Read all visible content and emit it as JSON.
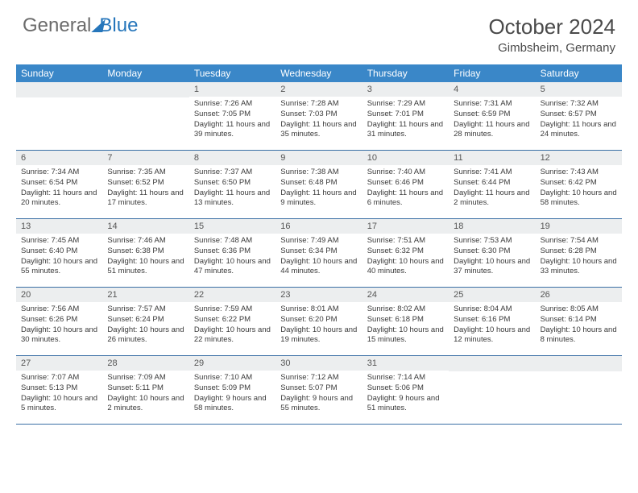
{
  "brand": {
    "text1": "General",
    "text2": "Blue"
  },
  "title": "October 2024",
  "location": "Gimbsheim, Germany",
  "colors": {
    "header_bg": "#3a87c8",
    "header_text": "#ffffff",
    "daynum_bg": "#eceeef",
    "border": "#3a6fa5",
    "brand_blue": "#2676bb",
    "text": "#333333"
  },
  "day_labels": [
    "Sunday",
    "Monday",
    "Tuesday",
    "Wednesday",
    "Thursday",
    "Friday",
    "Saturday"
  ],
  "weeks": [
    [
      null,
      null,
      {
        "n": "1",
        "sr": "7:26 AM",
        "ss": "7:05 PM",
        "dl": "Daylight: 11 hours and 39 minutes."
      },
      {
        "n": "2",
        "sr": "7:28 AM",
        "ss": "7:03 PM",
        "dl": "Daylight: 11 hours and 35 minutes."
      },
      {
        "n": "3",
        "sr": "7:29 AM",
        "ss": "7:01 PM",
        "dl": "Daylight: 11 hours and 31 minutes."
      },
      {
        "n": "4",
        "sr": "7:31 AM",
        "ss": "6:59 PM",
        "dl": "Daylight: 11 hours and 28 minutes."
      },
      {
        "n": "5",
        "sr": "7:32 AM",
        "ss": "6:57 PM",
        "dl": "Daylight: 11 hours and 24 minutes."
      }
    ],
    [
      {
        "n": "6",
        "sr": "7:34 AM",
        "ss": "6:54 PM",
        "dl": "Daylight: 11 hours and 20 minutes."
      },
      {
        "n": "7",
        "sr": "7:35 AM",
        "ss": "6:52 PM",
        "dl": "Daylight: 11 hours and 17 minutes."
      },
      {
        "n": "8",
        "sr": "7:37 AM",
        "ss": "6:50 PM",
        "dl": "Daylight: 11 hours and 13 minutes."
      },
      {
        "n": "9",
        "sr": "7:38 AM",
        "ss": "6:48 PM",
        "dl": "Daylight: 11 hours and 9 minutes."
      },
      {
        "n": "10",
        "sr": "7:40 AM",
        "ss": "6:46 PM",
        "dl": "Daylight: 11 hours and 6 minutes."
      },
      {
        "n": "11",
        "sr": "7:41 AM",
        "ss": "6:44 PM",
        "dl": "Daylight: 11 hours and 2 minutes."
      },
      {
        "n": "12",
        "sr": "7:43 AM",
        "ss": "6:42 PM",
        "dl": "Daylight: 10 hours and 58 minutes."
      }
    ],
    [
      {
        "n": "13",
        "sr": "7:45 AM",
        "ss": "6:40 PM",
        "dl": "Daylight: 10 hours and 55 minutes."
      },
      {
        "n": "14",
        "sr": "7:46 AM",
        "ss": "6:38 PM",
        "dl": "Daylight: 10 hours and 51 minutes."
      },
      {
        "n": "15",
        "sr": "7:48 AM",
        "ss": "6:36 PM",
        "dl": "Daylight: 10 hours and 47 minutes."
      },
      {
        "n": "16",
        "sr": "7:49 AM",
        "ss": "6:34 PM",
        "dl": "Daylight: 10 hours and 44 minutes."
      },
      {
        "n": "17",
        "sr": "7:51 AM",
        "ss": "6:32 PM",
        "dl": "Daylight: 10 hours and 40 minutes."
      },
      {
        "n": "18",
        "sr": "7:53 AM",
        "ss": "6:30 PM",
        "dl": "Daylight: 10 hours and 37 minutes."
      },
      {
        "n": "19",
        "sr": "7:54 AM",
        "ss": "6:28 PM",
        "dl": "Daylight: 10 hours and 33 minutes."
      }
    ],
    [
      {
        "n": "20",
        "sr": "7:56 AM",
        "ss": "6:26 PM",
        "dl": "Daylight: 10 hours and 30 minutes."
      },
      {
        "n": "21",
        "sr": "7:57 AM",
        "ss": "6:24 PM",
        "dl": "Daylight: 10 hours and 26 minutes."
      },
      {
        "n": "22",
        "sr": "7:59 AM",
        "ss": "6:22 PM",
        "dl": "Daylight: 10 hours and 22 minutes."
      },
      {
        "n": "23",
        "sr": "8:01 AM",
        "ss": "6:20 PM",
        "dl": "Daylight: 10 hours and 19 minutes."
      },
      {
        "n": "24",
        "sr": "8:02 AM",
        "ss": "6:18 PM",
        "dl": "Daylight: 10 hours and 15 minutes."
      },
      {
        "n": "25",
        "sr": "8:04 AM",
        "ss": "6:16 PM",
        "dl": "Daylight: 10 hours and 12 minutes."
      },
      {
        "n": "26",
        "sr": "8:05 AM",
        "ss": "6:14 PM",
        "dl": "Daylight: 10 hours and 8 minutes."
      }
    ],
    [
      {
        "n": "27",
        "sr": "7:07 AM",
        "ss": "5:13 PM",
        "dl": "Daylight: 10 hours and 5 minutes."
      },
      {
        "n": "28",
        "sr": "7:09 AM",
        "ss": "5:11 PM",
        "dl": "Daylight: 10 hours and 2 minutes."
      },
      {
        "n": "29",
        "sr": "7:10 AM",
        "ss": "5:09 PM",
        "dl": "Daylight: 9 hours and 58 minutes."
      },
      {
        "n": "30",
        "sr": "7:12 AM",
        "ss": "5:07 PM",
        "dl": "Daylight: 9 hours and 55 minutes."
      },
      {
        "n": "31",
        "sr": "7:14 AM",
        "ss": "5:06 PM",
        "dl": "Daylight: 9 hours and 51 minutes."
      },
      null,
      null
    ]
  ],
  "labels": {
    "sunrise": "Sunrise:",
    "sunset": "Sunset:"
  }
}
